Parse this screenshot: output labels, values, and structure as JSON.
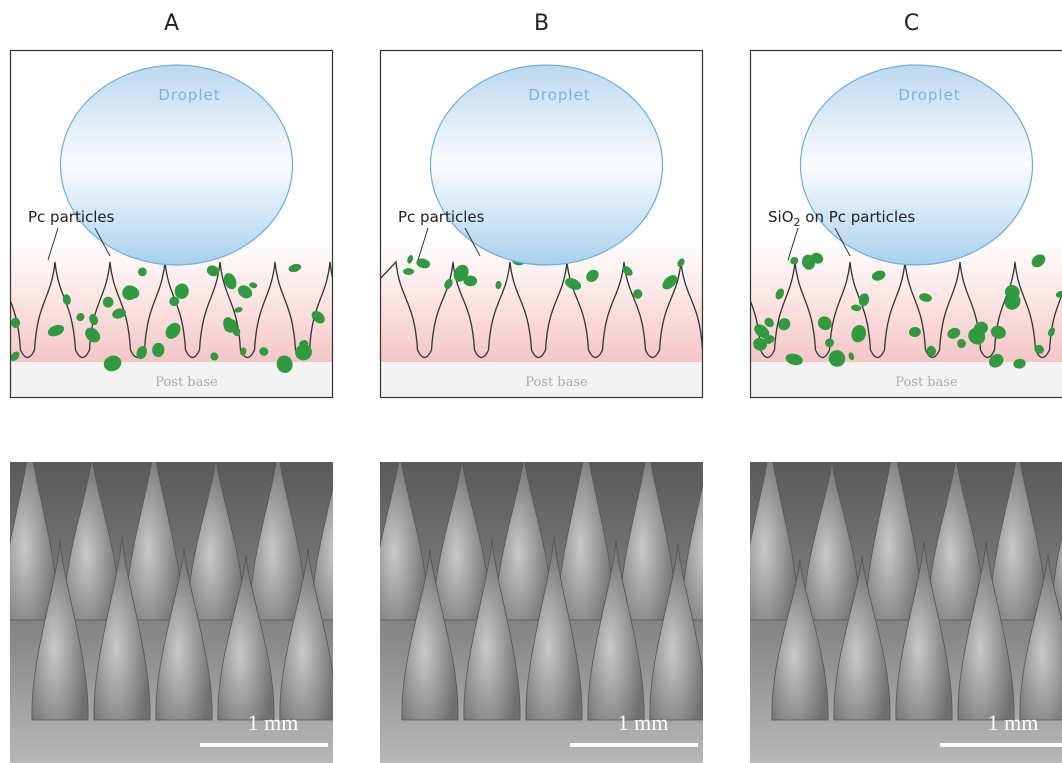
{
  "panels": [
    {
      "label": "A",
      "droplet": "Droplet",
      "annotation": [
        "Pc particles"
      ],
      "base": "Post base",
      "scale": "1 mm"
    },
    {
      "label": "B",
      "droplet": "Droplet",
      "annotation": [
        "Pc particles"
      ],
      "base": "Post base",
      "scale": "1 mm"
    },
    {
      "label": "C",
      "droplet": "Droplet",
      "annotation": [
        "SiO",
        "2",
        " on Pc particles"
      ],
      "base": "Post base",
      "scale": "1 mm"
    }
  ]
}
